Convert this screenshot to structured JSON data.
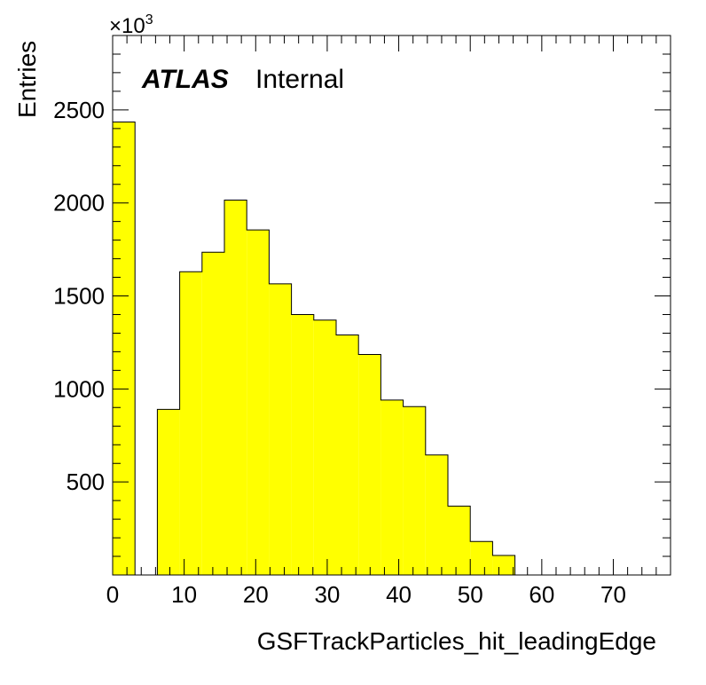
{
  "chart_data": {
    "type": "bar",
    "style": "histogram",
    "fill_color": "#ffff00",
    "edge_color": "#000000",
    "ylabel": "Entries",
    "xlabel": "GSFTrackParticles_hit_leadingEdge",
    "y_multiplier_label": "×10",
    "y_multiplier_exponent": "3",
    "atlas_label": "ATLAS",
    "atlas_suffix": "Internal",
    "xlim": [
      0,
      78
    ],
    "ylim": [
      0,
      2900
    ],
    "grid": false,
    "x_ticks": [
      0,
      10,
      20,
      30,
      40,
      50,
      60,
      70
    ],
    "y_ticks": [
      500,
      1000,
      1500,
      2000,
      2500
    ],
    "bins": [
      {
        "x0": 0.0,
        "x1": 3.125,
        "value": 2435
      },
      {
        "x0": 3.125,
        "x1": 6.25,
        "value": 0
      },
      {
        "x0": 6.25,
        "x1": 9.375,
        "value": 890
      },
      {
        "x0": 9.375,
        "x1": 12.5,
        "value": 1630
      },
      {
        "x0": 12.5,
        "x1": 15.625,
        "value": 1735
      },
      {
        "x0": 15.625,
        "x1": 18.75,
        "value": 2015
      },
      {
        "x0": 18.75,
        "x1": 21.875,
        "value": 1855
      },
      {
        "x0": 21.875,
        "x1": 25.0,
        "value": 1565
      },
      {
        "x0": 25.0,
        "x1": 28.125,
        "value": 1400
      },
      {
        "x0": 28.125,
        "x1": 31.25,
        "value": 1370
      },
      {
        "x0": 31.25,
        "x1": 34.375,
        "value": 1290
      },
      {
        "x0": 34.375,
        "x1": 37.5,
        "value": 1185
      },
      {
        "x0": 37.5,
        "x1": 40.625,
        "value": 940
      },
      {
        "x0": 40.625,
        "x1": 43.75,
        "value": 905
      },
      {
        "x0": 43.75,
        "x1": 46.875,
        "value": 645
      },
      {
        "x0": 46.875,
        "x1": 50.0,
        "value": 370
      },
      {
        "x0": 50.0,
        "x1": 53.125,
        "value": 180
      },
      {
        "x0": 53.125,
        "x1": 56.25,
        "value": 105
      }
    ]
  }
}
